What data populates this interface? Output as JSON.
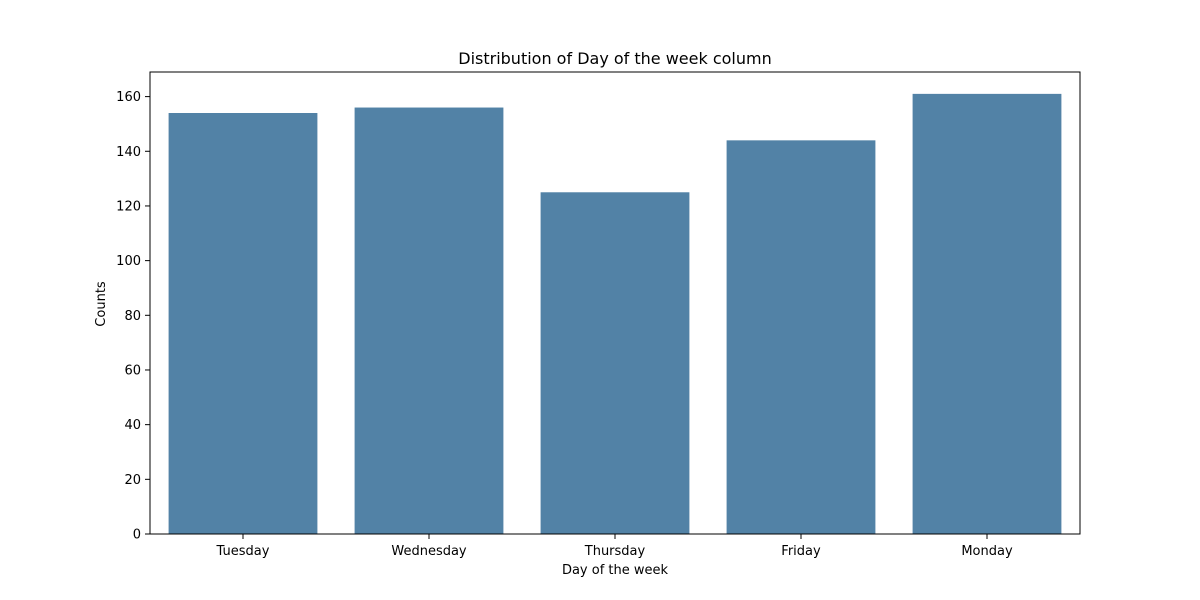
{
  "chart_data": {
    "type": "bar",
    "title": "Distribution of Day of the week column",
    "xlabel": "Day of the week",
    "ylabel": "Counts",
    "categories": [
      "Tuesday",
      "Wednesday",
      "Thursday",
      "Friday",
      "Monday"
    ],
    "values": [
      154,
      156,
      125,
      144,
      161
    ],
    "ylim": [
      0,
      169
    ],
    "yticks": [
      0,
      20,
      40,
      60,
      80,
      100,
      120,
      140,
      160
    ],
    "grid": false,
    "bar_color": "#5282a6"
  }
}
